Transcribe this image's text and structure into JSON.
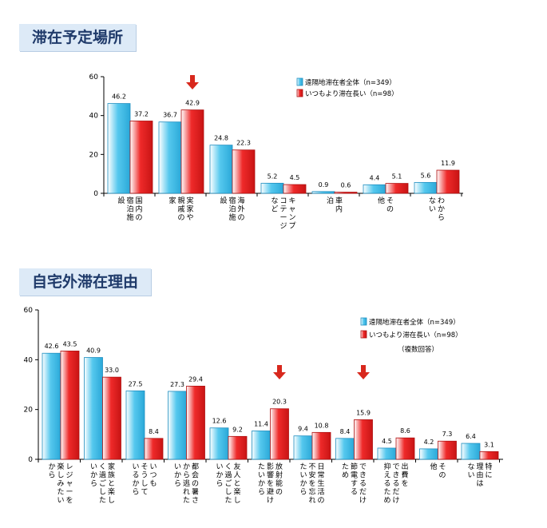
{
  "sections": [
    {
      "title": "滞在予定場所"
    },
    {
      "title": "自宅外滞在理由"
    }
  ],
  "colors": {
    "series_a": "#55c8ee",
    "series_b": "#ef2a2a",
    "arrow": "#d8281d",
    "title_bg": "#ddeaf7",
    "title_text": "#1f3a6a"
  },
  "chart_data": [
    {
      "type": "bar",
      "title": "滞在予定場所",
      "ylim": [
        0,
        60
      ],
      "yticks": [
        "0",
        "20",
        "40",
        "60"
      ],
      "grid": false,
      "legend": "top-right",
      "categories": [
        "国内の宿泊施設",
        "実家や親戚の家",
        "海外の宿泊施設",
        "キャンプ、コテージなど",
        "車内泊",
        "その他",
        "わからない"
      ],
      "category_lines": [
        [
          "国内の",
          "宿泊施",
          "設"
        ],
        [
          "実家や",
          "親戚の",
          "家"
        ],
        [
          "海外の",
          "宿泊施",
          "設"
        ],
        [
          "キャンプ",
          "コテージ",
          "など"
        ],
        [
          "車内",
          "泊"
        ],
        [
          "その",
          "他"
        ],
        [
          "わから",
          "ない"
        ]
      ],
      "series": [
        {
          "name": "遠隔地滞在者全体（n=349）",
          "values": [
            46.2,
            36.7,
            24.8,
            5.2,
            0.9,
            4.4,
            5.6
          ]
        },
        {
          "name": "いつもより滞在長い（n=98）",
          "values": [
            37.2,
            42.9,
            22.3,
            4.5,
            0.6,
            5.1,
            11.9
          ]
        }
      ],
      "value_labels": [
        [
          "46.2",
          "36.7",
          "24.8",
          "5.2",
          "0.9",
          "4.4",
          "5.6"
        ],
        [
          "37.2",
          "42.9",
          "22.3",
          "4.5",
          "0.6",
          "5.1",
          "11.9"
        ]
      ],
      "arrow_categories": [
        1
      ]
    },
    {
      "type": "bar",
      "title": "自宅外滞在理由",
      "ylim": [
        0,
        60
      ],
      "yticks": [
        "0",
        "20",
        "40",
        "60"
      ],
      "grid": false,
      "legend": "top-right",
      "legend_note": "（複数回答）",
      "categories": [
        "レジャーを楽しみたいから",
        "家族と楽しく過ごしたいから",
        "いつもそうしているから",
        "都会の暑さから逃れたいから",
        "友人と楽しく過ごしたいから",
        "放射能の影響を避けたいから",
        "日常生活の不安を忘れたいから",
        "できるだけ節電するため",
        "出費をできるだけ抑えるため",
        "その他",
        "特に理由はない"
      ],
      "category_lines": [
        [
          "レジャーを",
          "楽しみたい",
          "から"
        ],
        [
          "家族と楽し",
          "く過ごした",
          "いから"
        ],
        [
          "いつも",
          "そうして",
          "いるから"
        ],
        [
          "都会の暑さ",
          "から逃れた",
          "いから"
        ],
        [
          "友人と楽し",
          "く過ごした",
          "いから"
        ],
        [
          "放射能の",
          "影響を避け",
          "たいから"
        ],
        [
          "日常生活の",
          "不安を忘れ",
          "たいから"
        ],
        [
          "できるだけ",
          "節電する",
          "ため"
        ],
        [
          "出費を",
          "できるだけ",
          "抑えるため"
        ],
        [
          "その",
          "他"
        ],
        [
          "特に",
          "理由は",
          "ない"
        ]
      ],
      "series": [
        {
          "name": "遠隔地滞在者全体（n=349）",
          "values": [
            42.6,
            40.9,
            27.5,
            27.3,
            12.6,
            11.4,
            9.4,
            8.4,
            4.5,
            4.2,
            6.4
          ]
        },
        {
          "name": "いつもより滞在長い（n=98）",
          "values": [
            43.5,
            33.0,
            8.4,
            29.4,
            9.2,
            20.3,
            10.8,
            15.9,
            8.6,
            7.3,
            3.1
          ]
        }
      ],
      "value_labels": [
        [
          "42.6",
          "40.9",
          "27.5",
          "27.3",
          "12.6",
          "11.4",
          "9.4",
          "8.4",
          "4.5",
          "4.2",
          "6.4"
        ],
        [
          "43.5",
          "33.0",
          "8.4",
          "29.4",
          "9.2",
          "20.3",
          "10.8",
          "15.9",
          "8.6",
          "7.3",
          "3.1"
        ]
      ],
      "arrow_categories": [
        5,
        7
      ]
    }
  ]
}
